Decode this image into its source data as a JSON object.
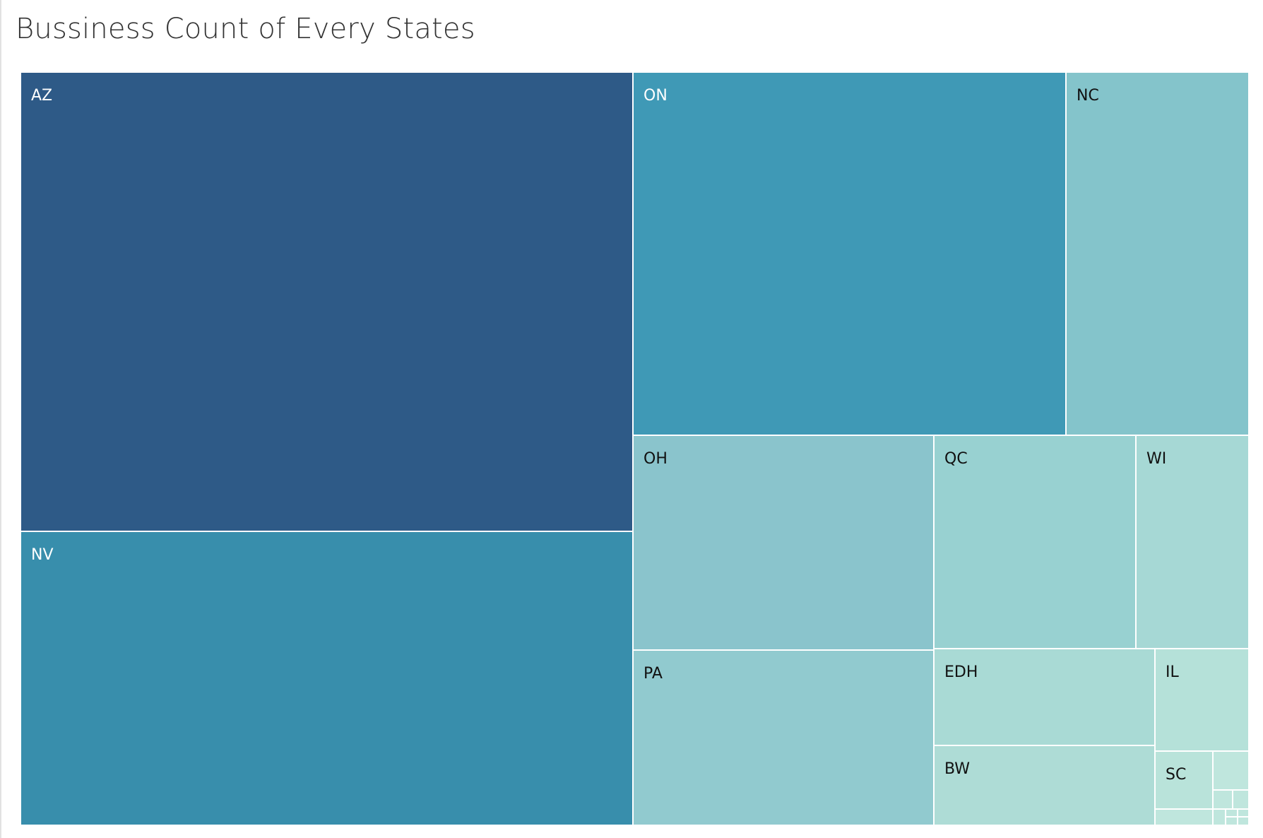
{
  "title": "Bussiness Count of Every States",
  "chart_data": {
    "type": "treemap",
    "title": "Bussiness Count of Every States",
    "sizing": "relative area (approximate, read from tile sizes)",
    "items": [
      {
        "name": "AZ",
        "value": 1000,
        "color": "#2e5a87",
        "text_color": "#ffffff"
      },
      {
        "name": "NV",
        "value": 650,
        "color": "#388eac",
        "text_color": "#ffffff"
      },
      {
        "name": "ON",
        "value": 560,
        "color": "#3f99b6",
        "text_color": "#ffffff"
      },
      {
        "name": "NC",
        "value": 240,
        "color": "#84c4cb",
        "text_color": "#111111"
      },
      {
        "name": "OH",
        "value": 230,
        "color": "#8ac4cc",
        "text_color": "#111111"
      },
      {
        "name": "PA",
        "value": 206,
        "color": "#91cacf",
        "text_color": "#111111"
      },
      {
        "name": "QC",
        "value": 153,
        "color": "#98d1d1",
        "text_color": "#111111"
      },
      {
        "name": "WI",
        "value": 88,
        "color": "#a6d8d5",
        "text_color": "#111111"
      },
      {
        "name": "EDH",
        "value": 75,
        "color": "#a9dad5",
        "text_color": "#111111"
      },
      {
        "name": "BW",
        "value": 65,
        "color": "#aedcd6",
        "text_color": "#111111"
      },
      {
        "name": "IL",
        "value": 29,
        "color": "#b5e1d9",
        "text_color": "#111111"
      },
      {
        "name": "SC",
        "value": 14,
        "color": "#b9e3da",
        "text_color": "#111111"
      }
    ]
  }
}
